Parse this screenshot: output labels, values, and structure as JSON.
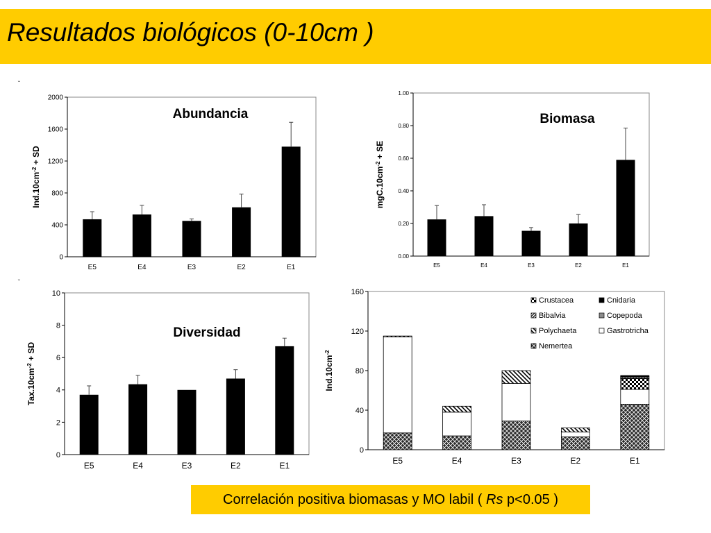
{
  "slide": {
    "title": "Resultados biológicos (0-10cm )",
    "stray_mark": "˘",
    "footer": {
      "before": "Correlación positiva biomasas y MO labil (",
      "italic": "Rs",
      "after": "p<0.05 )"
    },
    "colors": {
      "accent": "#ffcc00",
      "bar": "#000000"
    }
  },
  "chart_data": [
    {
      "id": "abundancia",
      "type": "bar",
      "title": "Abundancia",
      "ylabel": "Ind.10cm⁻² + SD",
      "xlabel": "",
      "categories": [
        "E5",
        "E4",
        "E3",
        "E2",
        "E1"
      ],
      "values": [
        470,
        530,
        450,
        620,
        1380
      ],
      "errors": [
        95,
        115,
        25,
        165,
        305
      ],
      "ylim": [
        0,
        2000
      ],
      "yticks": [
        0,
        400,
        800,
        1200,
        1600,
        2000
      ],
      "ytick_labels": [
        "0",
        "400",
        "800",
        "1200",
        "1600",
        "2000"
      ],
      "grid": false
    },
    {
      "id": "biomasa",
      "type": "bar",
      "title": "Biomasa",
      "ylabel": "mgC.10cm⁻² + SE",
      "xlabel": "",
      "categories": [
        "E5",
        "E4",
        "E3",
        "E2",
        "E1"
      ],
      "values": [
        0.225,
        0.245,
        0.155,
        0.2,
        0.59
      ],
      "errors": [
        0.085,
        0.07,
        0.02,
        0.055,
        0.195
      ],
      "ylim": [
        0,
        1
      ],
      "yticks": [
        0,
        0.2,
        0.4,
        0.6,
        0.8,
        1.0
      ],
      "ytick_labels": [
        "0.00",
        "0.20",
        "0.40",
        "0.60",
        "0.80",
        "1.00"
      ],
      "grid": false
    },
    {
      "id": "diversidad",
      "type": "bar",
      "title": "Diversidad",
      "ylabel": "Tax.10cm⁻² + SD",
      "xlabel": "",
      "categories": [
        "E5",
        "E4",
        "E3",
        "E2",
        "E1"
      ],
      "values": [
        3.7,
        4.35,
        4.0,
        4.7,
        6.7
      ],
      "errors": [
        0.55,
        0.55,
        0.0,
        0.55,
        0.5
      ],
      "ylim": [
        0,
        10
      ],
      "yticks": [
        0,
        2,
        4,
        6,
        8,
        10
      ],
      "ytick_labels": [
        "0",
        "2",
        "4",
        "6",
        "8",
        "10"
      ],
      "grid": false
    },
    {
      "id": "composicion",
      "type": "bar",
      "stacked": true,
      "title": "",
      "ylabel": "Ind.10cm⁻²",
      "xlabel": "",
      "categories": [
        "E5",
        "E4",
        "E3",
        "E2",
        "E1"
      ],
      "ylim": [
        0,
        160
      ],
      "yticks": [
        0,
        40,
        80,
        120,
        160
      ],
      "ytick_labels": [
        "0",
        "40",
        "80",
        "120",
        "160"
      ],
      "grid": false,
      "legend_position": "top-right",
      "legend_order": [
        "Crustacea",
        "Cnidaria",
        "Bibalvia",
        "Copepoda",
        "Polychaeta",
        "Gastrotricha",
        "Nemertea"
      ],
      "series": [
        {
          "name": "Nemertea",
          "pattern": "crosshatch-dark",
          "values": [
            17,
            14,
            29,
            13,
            46
          ]
        },
        {
          "name": "Gastrotricha",
          "pattern": "white",
          "values": [
            97,
            24,
            38,
            5,
            15
          ]
        },
        {
          "name": "Polychaeta",
          "pattern": "diagonal-stripe",
          "values": [
            1,
            6,
            13,
            4,
            0
          ]
        },
        {
          "name": "Crustacea",
          "pattern": "crosshatch-light",
          "values": [
            0,
            0,
            0,
            0,
            11
          ]
        },
        {
          "name": "Bibalvia",
          "pattern": "diagonal-dense",
          "values": [
            0,
            0,
            0,
            0,
            1
          ]
        },
        {
          "name": "Copepoda",
          "pattern": "gray",
          "values": [
            0,
            0,
            0,
            0,
            1
          ]
        },
        {
          "name": "Cnidaria",
          "pattern": "black",
          "values": [
            0,
            0,
            0,
            0,
            1
          ]
        }
      ]
    }
  ]
}
